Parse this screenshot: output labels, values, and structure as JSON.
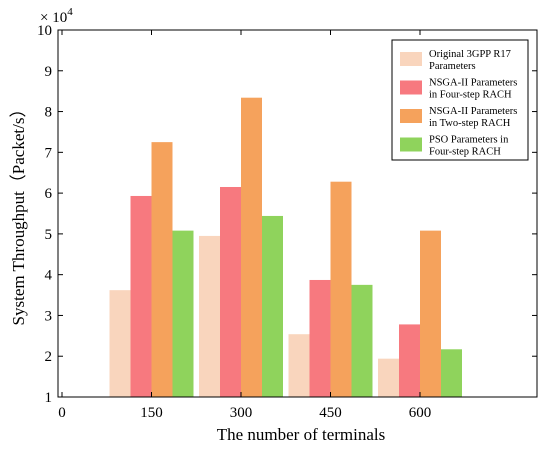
{
  "chart_data": {
    "type": "bar",
    "title": "",
    "xlabel": "The number of terminals",
    "ylabel": "System Throughput（Packet/s）",
    "y_multiplier": "× 10",
    "y_multiplier_exp": "4",
    "x_ticks": [
      "0",
      "150",
      "300",
      "450",
      "600"
    ],
    "categories": [
      "150",
      "300",
      "450",
      "600"
    ],
    "y_ticks": [
      "1",
      "2",
      "3",
      "4",
      "5",
      "6",
      "7",
      "8",
      "9",
      "10"
    ],
    "ylim": [
      1,
      10
    ],
    "grid": false,
    "legend_position": "top-right",
    "series": [
      {
        "name_lines": [
          "Original 3GPP R17",
          "Parameters"
        ],
        "color": "#f9d5bd",
        "values": [
          3.62,
          4.95,
          2.54,
          1.94
        ]
      },
      {
        "name_lines": [
          "NSGA-II Parameters",
          "in Four-step RACH"
        ],
        "color": "#f7797f",
        "values": [
          5.93,
          6.15,
          3.87,
          2.78
        ]
      },
      {
        "name_lines": [
          "NSGA-II Parameters",
          "in Two-step RACH"
        ],
        "color": "#f5a25c",
        "values": [
          7.25,
          8.34,
          6.28,
          5.08
        ]
      },
      {
        "name_lines": [
          "PSO Parameters in",
          "Four-step RACH"
        ],
        "color": "#8fd35c",
        "values": [
          5.08,
          5.44,
          3.75,
          2.17
        ]
      }
    ]
  }
}
